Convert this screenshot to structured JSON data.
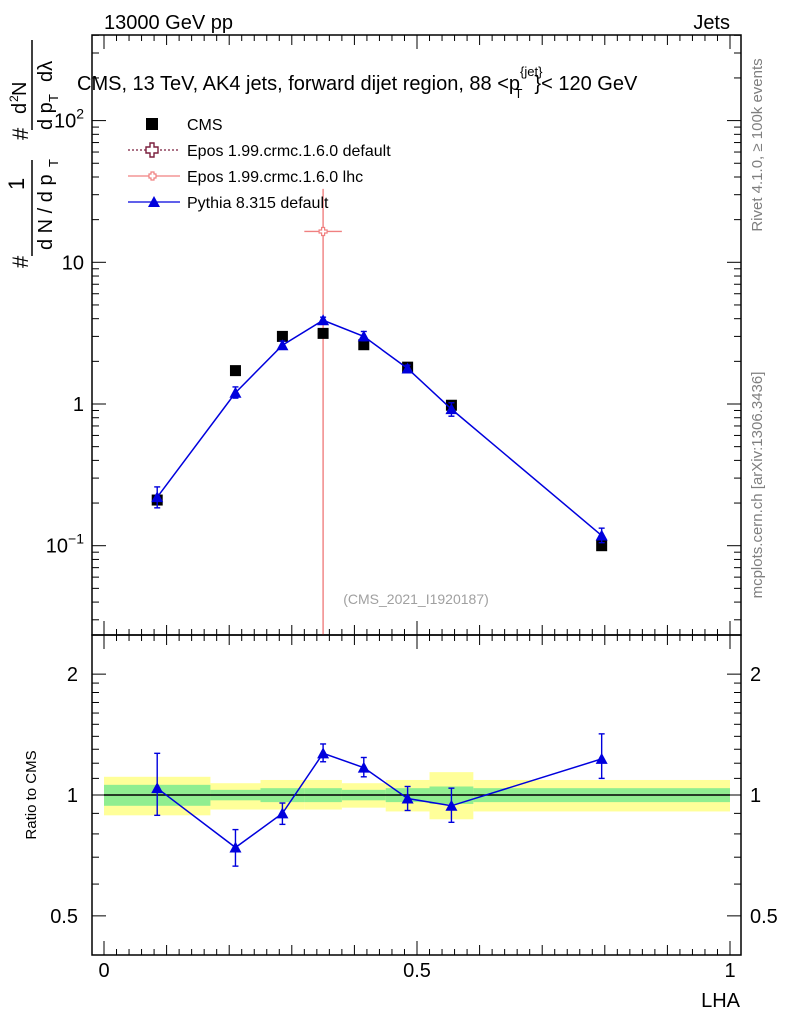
{
  "header": {
    "energy_label": "13000 GeV pp",
    "category_label": "Jets",
    "rivet_label": "Rivet 4.1.0, ≥ 100k events",
    "site_label": "mcplots.cern.ch [arXiv:1306.3436]",
    "analysis_id": "(CMS_2021_I1920187)"
  },
  "chart_data": [
    {
      "type": "line",
      "title": "CMS, 13 TeV, AK4 jets, forward dijet region, 88 <p_T^{jet}< 120 GeV",
      "ylabel": "1/dN/dpT · d^2N/dpT dλ",
      "yscale": "log",
      "ylim": [
        0.025,
        400
      ],
      "xlim": [
        0,
        1
      ],
      "yticks_major": [
        0.1,
        1,
        10,
        100
      ],
      "ytick_labels": [
        "10^-1",
        "1",
        "10",
        "10^2"
      ],
      "legend": [
        {
          "name": "CMS",
          "marker": "square",
          "color": "#000000"
        },
        {
          "name": "Epos 1.99.crmc.1.6.0 default",
          "marker": "open-cross",
          "color": "#7a1f3d"
        },
        {
          "name": "Epos 1.99.crmc.1.6.0 lhc",
          "marker": "open-cross",
          "color": "#f08080"
        },
        {
          "name": "Pythia 8.315 default",
          "marker": "triangle",
          "color": "#0000dd"
        }
      ],
      "series": [
        {
          "name": "CMS",
          "x": [
            0.085,
            0.21,
            0.285,
            0.35,
            0.415,
            0.485,
            0.555,
            0.795
          ],
          "values": [
            0.21,
            1.72,
            3.0,
            3.15,
            2.62,
            1.82,
            0.98,
            0.1
          ]
        },
        {
          "name": "Epos 1.99.crmc.1.6.0 lhc",
          "x": [
            0.35
          ],
          "values": [
            16.5
          ],
          "xerr": [
            0.03
          ],
          "yerr_low": [
            0.001
          ],
          "yerr_high": [
            33
          ]
        },
        {
          "name": "Pythia 8.315 default",
          "x": [
            0.085,
            0.21,
            0.285,
            0.35,
            0.415,
            0.485,
            0.555,
            0.795
          ],
          "values": [
            0.22,
            1.2,
            2.6,
            3.9,
            3.0,
            1.78,
            0.92,
            0.118
          ],
          "yerr_low": [
            0.185,
            1.1,
            2.45,
            3.7,
            2.8,
            1.68,
            0.82,
            0.105
          ],
          "yerr_high": [
            0.26,
            1.32,
            2.78,
            4.1,
            3.25,
            1.88,
            1.02,
            0.133
          ]
        }
      ]
    },
    {
      "type": "line",
      "title": "",
      "ylabel": "Ratio to CMS",
      "xlabel": "LHA",
      "yscale": "log",
      "ylim": [
        0.45,
        2.2
      ],
      "xlim": [
        0,
        1
      ],
      "yticks_major": [
        0.5,
        1,
        2
      ],
      "ytick_labels": [
        "0.5",
        "1",
        "2"
      ],
      "xticks_major": [
        0,
        0.5,
        1
      ],
      "xtick_labels": [
        "0",
        "0.5",
        "1"
      ],
      "bands": {
        "edges": [
          0,
          0.17,
          0.25,
          0.32,
          0.38,
          0.45,
          0.52,
          0.59,
          1.0
        ],
        "stat_low": [
          0.94,
          0.97,
          0.96,
          0.96,
          0.97,
          0.96,
          0.95,
          0.96
        ],
        "stat_high": [
          1.06,
          1.03,
          1.04,
          1.04,
          1.03,
          1.04,
          1.05,
          1.04
        ],
        "total_low": [
          0.89,
          0.92,
          0.92,
          0.92,
          0.93,
          0.91,
          0.87,
          0.91
        ],
        "total_high": [
          1.11,
          1.07,
          1.09,
          1.09,
          1.07,
          1.09,
          1.14,
          1.09
        ]
      },
      "series": [
        {
          "name": "Pythia 8.315 default / CMS",
          "x": [
            0.085,
            0.21,
            0.285,
            0.35,
            0.415,
            0.485,
            0.555,
            0.795
          ],
          "values": [
            1.04,
            0.74,
            0.9,
            1.27,
            1.17,
            0.98,
            0.94,
            1.23
          ],
          "yerr_low": [
            0.89,
            0.665,
            0.845,
            1.21,
            1.11,
            0.915,
            0.855,
            1.1
          ],
          "yerr_high": [
            1.27,
            0.82,
            0.955,
            1.34,
            1.24,
            1.05,
            1.04,
            1.42
          ]
        }
      ]
    }
  ]
}
